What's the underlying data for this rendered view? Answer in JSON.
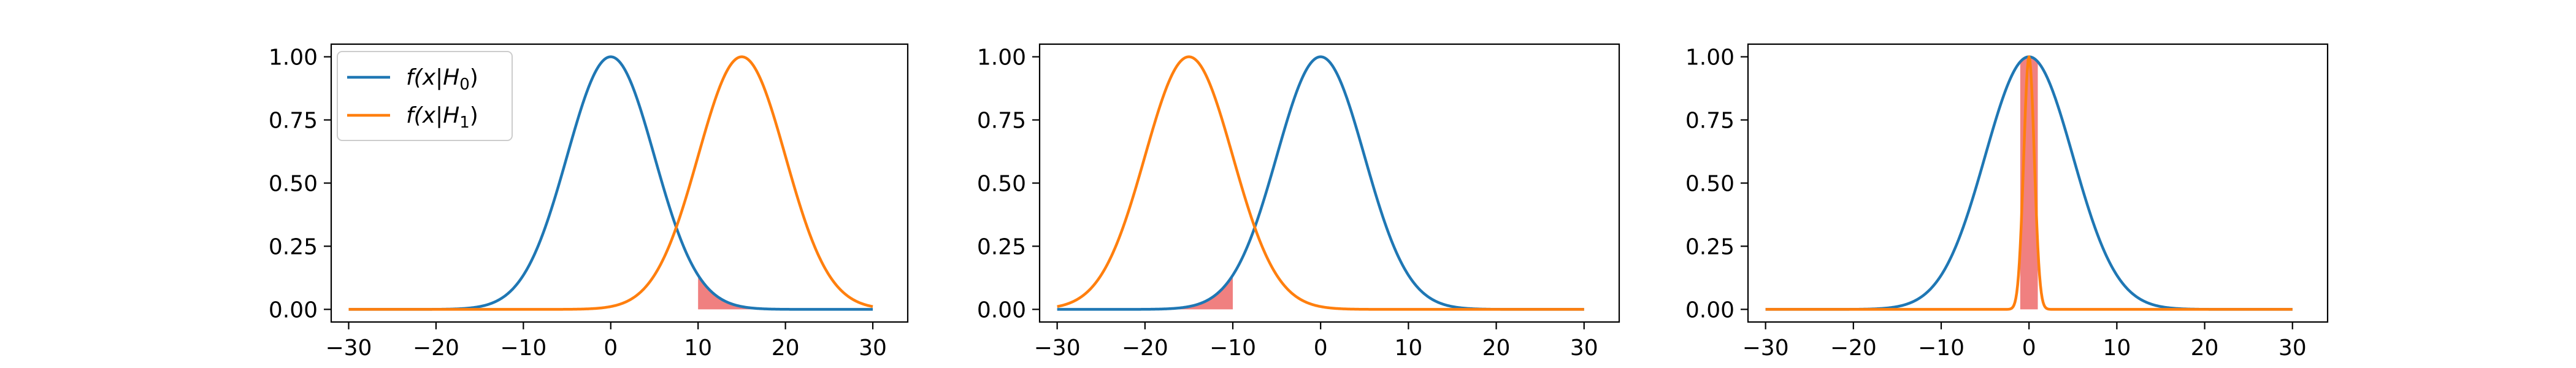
{
  "chart_data": [
    {
      "type": "line",
      "xlim": [
        -32,
        34
      ],
      "ylim": [
        -0.05,
        1.05
      ],
      "xticks": [
        -30,
        -20,
        -10,
        0,
        10,
        20,
        30
      ],
      "yticks": [
        0.0,
        0.25,
        0.5,
        0.75,
        1.0
      ],
      "ytick_labels": [
        "0.00",
        "0.25",
        "0.50",
        "0.75",
        "1.00"
      ],
      "grid": false,
      "legend_position": "upper-left",
      "series": [
        {
          "name": "f(x|H0)",
          "label_main": "f(x|H",
          "label_sub": "0",
          "label_end": ")",
          "mean": 0,
          "sd": 5,
          "color": "#1f77b4"
        },
        {
          "name": "f(x|H1)",
          "label_main": "f(x|H",
          "label_sub": "1",
          "label_end": ")",
          "mean": 15,
          "sd": 5,
          "color": "#ff7f0e"
        }
      ],
      "shaded_region": {
        "x_from": 10,
        "x_to": 30,
        "under_series": 0,
        "color": "#f08080"
      }
    },
    {
      "type": "line",
      "xlim": [
        -32,
        34
      ],
      "ylim": [
        -0.05,
        1.05
      ],
      "xticks": [
        -30,
        -20,
        -10,
        0,
        10,
        20,
        30
      ],
      "yticks": [
        0.0,
        0.25,
        0.5,
        0.75,
        1.0
      ],
      "ytick_labels": [
        "0.00",
        "0.25",
        "0.50",
        "0.75",
        "1.00"
      ],
      "grid": false,
      "series": [
        {
          "mean": 0,
          "sd": 5,
          "color": "#1f77b4"
        },
        {
          "mean": -15,
          "sd": 5,
          "color": "#ff7f0e"
        }
      ],
      "shaded_region": {
        "x_from": -30,
        "x_to": -10,
        "under_series": 0,
        "color": "#f08080"
      }
    },
    {
      "type": "line",
      "xlim": [
        -32,
        34
      ],
      "ylim": [
        -0.05,
        1.05
      ],
      "xticks": [
        -30,
        -20,
        -10,
        0,
        10,
        20,
        30
      ],
      "yticks": [
        0.0,
        0.25,
        0.5,
        0.75,
        1.0
      ],
      "ytick_labels": [
        "0.00",
        "0.25",
        "0.50",
        "0.75",
        "1.00"
      ],
      "grid": false,
      "series": [
        {
          "mean": 0,
          "sd": 5,
          "color": "#1f77b4"
        },
        {
          "mean": 0,
          "sd": 0.6,
          "color": "#ff7f0e"
        }
      ],
      "shaded_region": {
        "x_from": -1,
        "x_to": 1,
        "under_series": 0,
        "color": "#f08080"
      }
    }
  ]
}
